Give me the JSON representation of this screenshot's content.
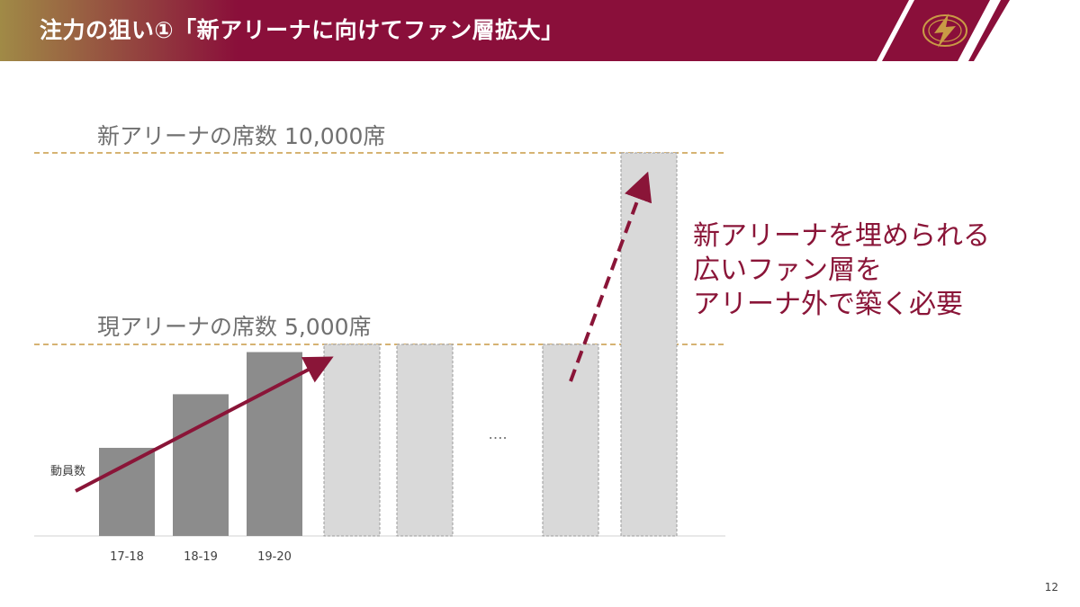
{
  "header": {
    "title": "注力の狙い①「新アリーナに向けてファン層拡大」",
    "logo_icon": "lightning-emblem-icon",
    "colors": {
      "start": "#a08a46",
      "end": "#8a0f3a",
      "stripe": "#ffffff"
    }
  },
  "reference_lines": {
    "new_arena": "新アリーナの席数 10,000席",
    "current_arena": "現アリーナの席数 5,000席",
    "line_color": "#c99a45"
  },
  "callout": {
    "lines": [
      "新アリーナを埋められる",
      "広いファン層を",
      "アリーナ外で築く必要"
    ]
  },
  "chart_data": {
    "type": "bar",
    "ylabel": "動員数",
    "categories": [
      "17-18",
      "18-19",
      "19-20",
      "",
      "",
      "",
      "",
      ""
    ],
    "values": [
      2300,
      3700,
      4800,
      null,
      null,
      null,
      null,
      null
    ],
    "projected_values": [
      null,
      null,
      null,
      5000,
      5000,
      null,
      5000,
      10000
    ],
    "ellipsis": "….",
    "reference_values": [
      5000,
      10000
    ],
    "colors": {
      "actual": "#8c8c8c",
      "projected": "#d9d9d9",
      "projected_border": "#9a9a9a",
      "arrow": "#8a1538"
    }
  },
  "page_number": "12"
}
